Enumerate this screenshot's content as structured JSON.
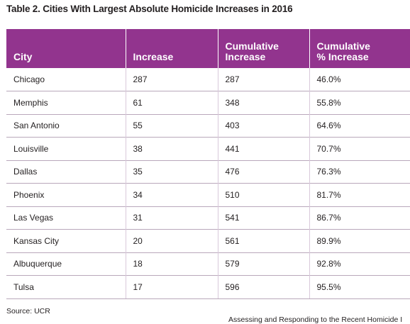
{
  "title": "Table 2. Cities With Largest Absolute Homicide Increases in 2016",
  "table": {
    "headers": [
      [
        "City"
      ],
      [
        "Increase"
      ],
      [
        "Cumulative",
        "Increase"
      ],
      [
        "Cumulative",
        "% Increase"
      ]
    ],
    "rows": [
      [
        "Chicago",
        "287",
        "287",
        "46.0%"
      ],
      [
        "Memphis",
        "61",
        "348",
        "55.8%"
      ],
      [
        "San Antonio",
        "55",
        "403",
        "64.6%"
      ],
      [
        "Louisville",
        "38",
        "441",
        "70.7%"
      ],
      [
        "Dallas",
        "35",
        "476",
        "76.3%"
      ],
      [
        "Phoenix",
        "34",
        "510",
        "81.7%"
      ],
      [
        "Las Vegas",
        "31",
        "541",
        "86.7%"
      ],
      [
        "Kansas City",
        "20",
        "561",
        "89.9%"
      ],
      [
        "Albuquerque",
        "18",
        "579",
        "92.8%"
      ],
      [
        "Tulsa",
        "17",
        "596",
        "95.5%"
      ]
    ]
  },
  "source": "Source: UCR",
  "footer_note": "Assessing and Responding to the Recent Homicide I",
  "colors": {
    "header_bg": "#92348e",
    "header_text": "#ffffff",
    "row_rule": "#b9a8bb"
  }
}
